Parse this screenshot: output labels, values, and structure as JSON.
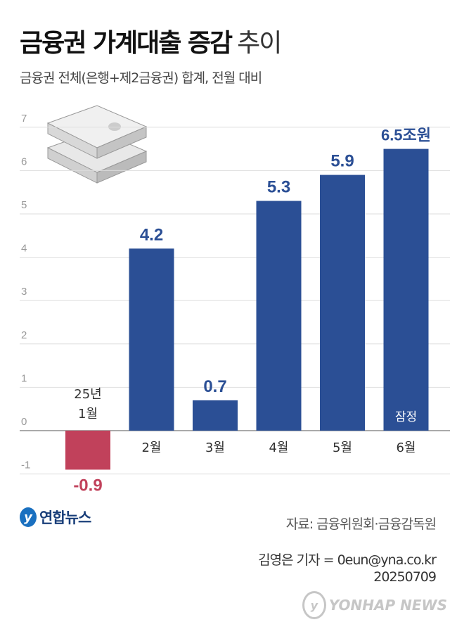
{
  "title_bold": "금융권 가계대출 증감",
  "title_light": "추이",
  "subtitle": "금융권 전체(은행+제2금융권) 합계, 전월 대비",
  "source": "자료: 금융위원회·금융감독원",
  "credit_line1": "김영은 기자 = 0eun@yna.co.kr",
  "credit_line2": "20250709",
  "logo_text": "연합뉴스",
  "watermark_text": "YONHAP NEWS",
  "colors": {
    "positive": "#2b4f95",
    "negative": "#c1415b",
    "positive_label": "#2b4f95",
    "negative_label": "#c1415b"
  },
  "chart_data": {
    "type": "bar",
    "categories": [
      "25년\n1월",
      "2월",
      "3월",
      "4월",
      "5월",
      "6월"
    ],
    "values": [
      -0.9,
      4.2,
      0.7,
      5.3,
      5.9,
      6.5
    ],
    "data_labels": [
      "-0.9",
      "4.2",
      "0.7",
      "5.3",
      "5.9",
      "6.5조원"
    ],
    "bar_annotations": [
      "",
      "",
      "",
      "",
      "",
      "잠정"
    ],
    "yticks": [
      "-1",
      "0",
      "1",
      "2",
      "3",
      "4",
      "5",
      "6",
      "7"
    ],
    "ylim": [
      -1,
      7
    ],
    "grid": true,
    "xlabel": "",
    "ylabel": ""
  }
}
